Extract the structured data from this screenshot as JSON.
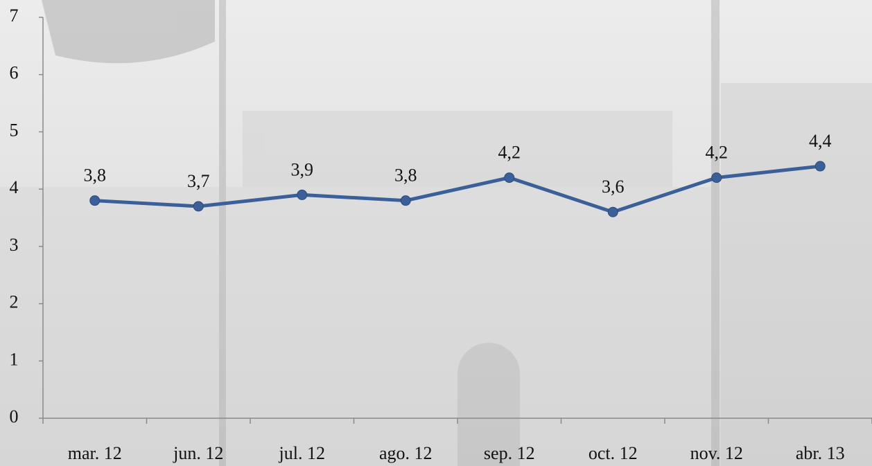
{
  "chart_data": {
    "type": "line",
    "categories": [
      "mar. 12",
      "jun. 12",
      "jul. 12",
      "ago. 12",
      "sep. 12",
      "oct. 12",
      "nov. 12",
      "abr. 13"
    ],
    "values": [
      3.8,
      3.7,
      3.9,
      3.8,
      4.2,
      3.6,
      4.2,
      4.4
    ],
    "value_labels": [
      "3,8",
      "3,7",
      "3,9",
      "3,8",
      "4,2",
      "3,6",
      "4,2",
      "4,4"
    ],
    "color": "#3b5f98",
    "ylim": [
      0,
      7
    ],
    "yticks": [
      0,
      1,
      2,
      3,
      4,
      5,
      6,
      7
    ],
    "grid": false
  }
}
